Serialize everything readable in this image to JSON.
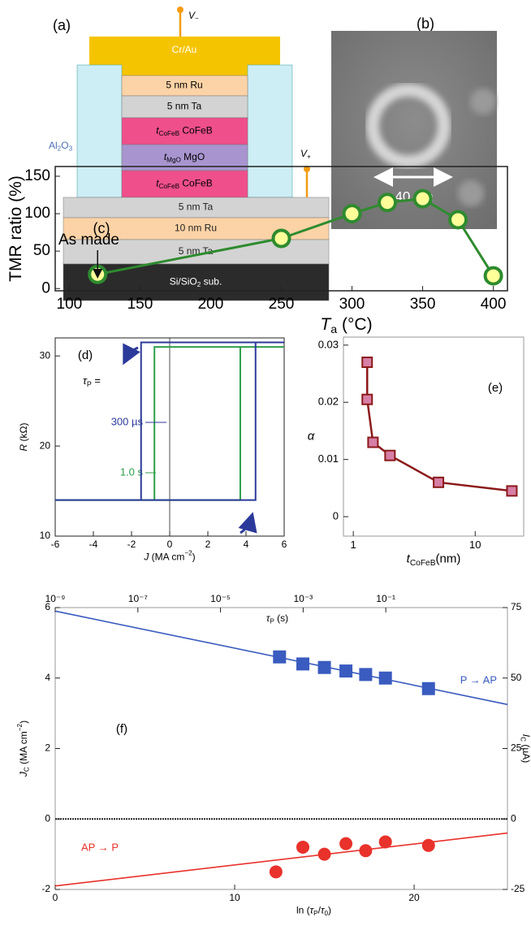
{
  "panel_labels": [
    "(a)",
    "(b)"
  ],
  "diagram": {
    "top_electrode": "Cr/Au",
    "insulator": [
      {
        "text": "Al"
      },
      {
        "sub": "2"
      },
      {
        "text": "O"
      },
      {
        "sub": "3"
      }
    ],
    "pillar_layers": [
      [
        {
          "text": "5 nm Ru"
        }
      ],
      [
        {
          "text": "5 nm Ta"
        }
      ],
      [
        {
          "italic": "t"
        },
        {
          "sub": "CoFeB"
        },
        {
          "text": " CoFeB"
        }
      ],
      [
        {
          "italic": "t"
        },
        {
          "sub": "MgO"
        },
        {
          "text": " MgO"
        }
      ],
      [
        {
          "italic": "t"
        },
        {
          "sub": "CoFeB"
        },
        {
          "text": " CoFeB"
        }
      ]
    ],
    "base_layers": [
      [
        {
          "text": "5 nm Ta"
        }
      ],
      [
        {
          "text": "10 nm Ru"
        }
      ],
      [
        {
          "text": "5 nm Ta"
        }
      ],
      [
        {
          "text": "Si/SiO"
        },
        {
          "sub": "2"
        },
        {
          "text": " sub."
        }
      ]
    ],
    "probes": [
      [
        {
          "italic": "V"
        },
        {
          "sub": "−"
        }
      ],
      [
        {
          "italic": "V"
        },
        {
          "sub": "+"
        }
      ]
    ]
  },
  "image": {
    "scale_bar": "40 nm"
  },
  "chart_data": [
    {
      "type": "line",
      "panel": "(c)",
      "x": [
        120,
        250,
        300,
        325,
        350,
        375,
        400
      ],
      "series": [
        {
          "values": [
            19,
            67,
            100,
            115,
            120,
            92,
            17
          ],
          "color": "#2e8b2e",
          "marker": "circle",
          "marker_fill": "#ffff99"
        }
      ],
      "xlim": [
        90,
        410
      ],
      "xticks": [
        100,
        150,
        200,
        250,
        300,
        350,
        400
      ],
      "ylim": [
        -3,
        163
      ],
      "yticks": [
        0,
        50,
        100,
        150
      ],
      "ylabel": [
        {
          "text": "TMR ratio (%)"
        }
      ],
      "xlabel": [
        {
          "italic": "T"
        },
        {
          "sub": "a"
        },
        {
          "text": " (°C)"
        }
      ],
      "annotation": "As made"
    },
    {
      "type": "line",
      "panel": "(d)",
      "series": [
        {
          "name": "1.0 s",
          "color": "#2e9e4a",
          "x": [
            -6,
            3.7,
            3.7,
            6,
            -0.8,
            -0.8,
            -6
          ],
          "values": [
            14,
            14,
            31,
            31,
            31,
            14,
            14
          ]
        },
        {
          "name": "300 µs",
          "color": "#2b3a9a",
          "x": [
            -6,
            4.5,
            4.5,
            6,
            -1.5,
            -1.5,
            -6
          ],
          "values": [
            14,
            14,
            31.5,
            31.5,
            31.5,
            14,
            14
          ]
        }
      ],
      "xlim": [
        -6,
        6
      ],
      "xticks": [
        -6,
        -4,
        -2,
        0,
        2,
        4,
        6
      ],
      "ylim": [
        10,
        32
      ],
      "yticks": [
        10,
        20,
        30
      ],
      "zero_line": "vertical",
      "legend_title": [
        {
          "italic": "τ"
        },
        {
          "sub": "P"
        },
        {
          "text": " ="
        }
      ],
      "ylabel": [
        {
          "italic": "R"
        },
        {
          "text": " (kΩ)"
        }
      ],
      "xlabel": [
        {
          "italic": "J"
        },
        {
          "text": " (MA cm"
        },
        {
          "sup": "−2"
        },
        {
          "text": ")"
        }
      ]
    },
    {
      "type": "line",
      "panel": "(e)",
      "xlog": true,
      "x": [
        1.3,
        1.3,
        1.45,
        2,
        5,
        20
      ],
      "series": [
        {
          "values": [
            0.027,
            0.0205,
            0.013,
            0.0107,
            0.006,
            0.0045
          ],
          "color": "#8b1a1a",
          "marker": "square",
          "marker_fill": "#d77fa6"
        }
      ],
      "xlim": [
        0.83,
        25
      ],
      "xticks": [
        1,
        10
      ],
      "ylim": [
        -0.0034,
        0.0314
      ],
      "yticks": [
        0,
        0.01,
        0.02,
        0.03
      ],
      "ylabel": [
        {
          "italic": "α"
        }
      ],
      "xlabel": [
        {
          "italic": "t"
        },
        {
          "sub": "CoFeB"
        },
        {
          "text": "(nm)"
        }
      ]
    },
    {
      "type": "scatter",
      "panel": "(f)",
      "series": [
        {
          "color": "#3a5bbf",
          "x": [
            0,
            25.2
          ],
          "values": [
            5.9,
            3.25
          ]
        },
        {
          "color": "#e8322b",
          "x": [
            0,
            25.2
          ],
          "values": [
            -1.9,
            -0.4
          ]
        },
        {
          "name": "P → AP",
          "color": "#3a5bbf",
          "marker": "square",
          "line": false,
          "x": [
            12.5,
            13.8,
            15,
            16.2,
            17.3,
            18.4,
            20.8
          ],
          "values": [
            4.6,
            4.4,
            4.3,
            4.2,
            4.1,
            4.0,
            3.7
          ]
        },
        {
          "name": "AP → P",
          "color": "#e8322b",
          "marker": "circle",
          "line": false,
          "x": [
            12.3,
            13.8,
            15,
            16.2,
            17.3,
            18.4,
            20.8
          ],
          "values": [
            -1.5,
            -0.8,
            -1.0,
            -0.7,
            -0.9,
            -0.65,
            -0.75
          ]
        }
      ],
      "xlim": [
        0,
        25.2
      ],
      "xticks": [
        0,
        10,
        20
      ],
      "ylim": [
        -2,
        6
      ],
      "yticks": [
        -2,
        0,
        2,
        4,
        6
      ],
      "y2lim": [
        -25,
        75
      ],
      "y2ticks": [
        -25,
        0,
        25,
        50,
        75
      ],
      "x2log": true,
      "x2lim": [
        1e-09,
        88
      ],
      "x2ticks": [
        {
          "value": 1e-09,
          "label": "10⁻⁹"
        },
        {
          "value": 1e-07,
          "label": "10⁻⁷"
        },
        {
          "value": 1e-05,
          "label": "10⁻⁵"
        },
        {
          "value": 0.001,
          "label": "10⁻³"
        },
        {
          "value": 0.1,
          "label": "10⁻¹"
        }
      ],
      "zero_line": "horizontal",
      "ylabel": [
        {
          "italic": "J"
        },
        {
          "sub": "C"
        },
        {
          "text": " (MA cm"
        },
        {
          "sup": "−2"
        },
        {
          "text": ")"
        }
      ],
      "y2label": [
        {
          "italic": "I"
        },
        {
          "sub": "C"
        },
        {
          "text": " (µA)"
        }
      ],
      "x2label": [
        {
          "italic": "τ"
        },
        {
          "sub": "P"
        },
        {
          "text": " (s)"
        }
      ],
      "xlabel": [
        {
          "text": "ln ("
        },
        {
          "italic": "τ"
        },
        {
          "sub": "P"
        },
        {
          "text": "/"
        },
        {
          "italic": "τ"
        },
        {
          "sub": "0"
        },
        {
          "text": ")"
        }
      ]
    }
  ]
}
